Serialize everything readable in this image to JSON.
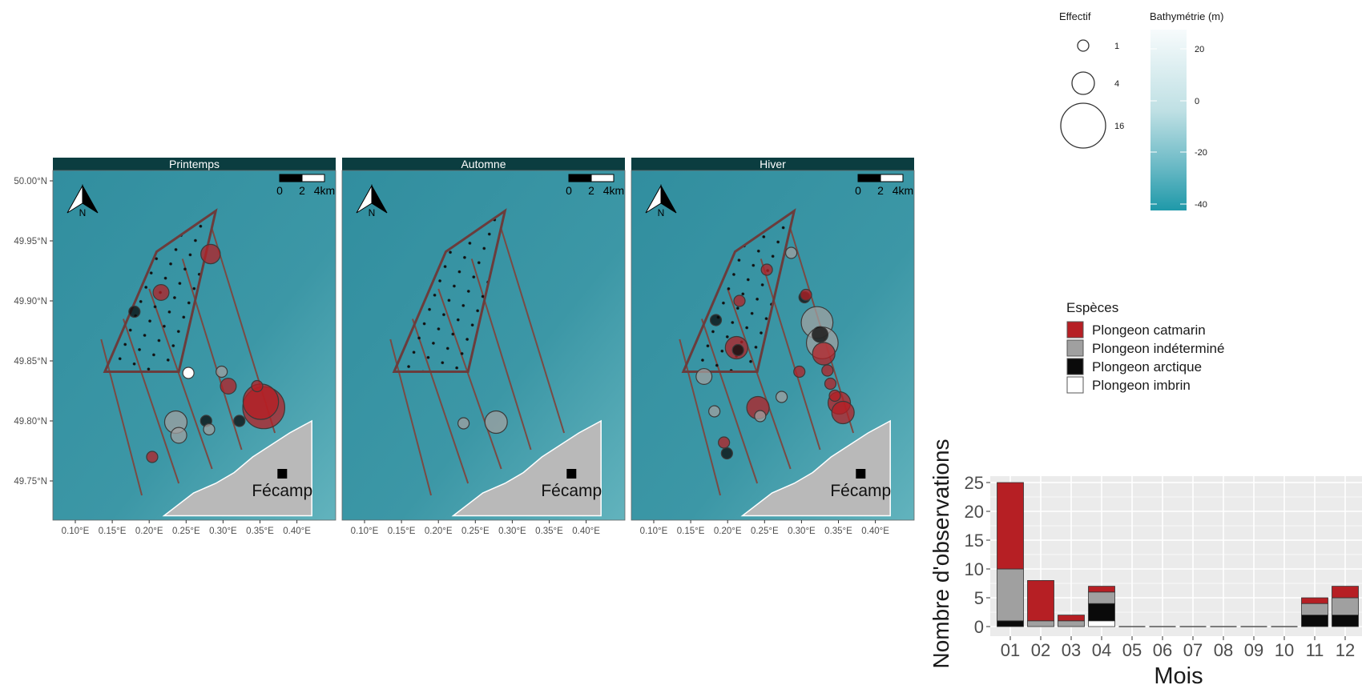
{
  "colors": {
    "sea": "#3b95a5",
    "land": "#b9b9b9",
    "strip": "#0b3d40",
    "catmarin": "#b61f24",
    "indetermine": "#a0a0a0",
    "arctique": "#0a0a0a",
    "imbrin": "#ffffff",
    "zone_outline": "#6b3c3c",
    "panel_bg": "#ebebeb",
    "grid": "#ffffff"
  },
  "map": {
    "lat_ticks": [
      "50.00°N",
      "49.95°N",
      "49.90°N",
      "49.85°N",
      "49.80°N",
      "49.75°N"
    ],
    "lon_ticks": [
      "0.10°E",
      "0.15°E",
      "0.20°E",
      "0.25°E",
      "0.30°E",
      "0.35°E",
      "0.40°E"
    ],
    "town": "Fécamp",
    "north_letter": "N",
    "scalebar_labels": [
      "0",
      "2",
      "4km"
    ],
    "panels": [
      {
        "title": "Printemps",
        "points": [
          {
            "lon": 0.18,
            "lat": 49.891,
            "n": 1,
            "sp": "arctique"
          },
          {
            "lon": 0.216,
            "lat": 49.907,
            "n": 2,
            "sp": "catmarin"
          },
          {
            "lon": 0.283,
            "lat": 49.939,
            "n": 3,
            "sp": "catmarin"
          },
          {
            "lon": 0.253,
            "lat": 49.84,
            "n": 1,
            "sp": "imbrin"
          },
          {
            "lon": 0.298,
            "lat": 49.841,
            "n": 1,
            "sp": "indetermine"
          },
          {
            "lon": 0.307,
            "lat": 49.829,
            "n": 2,
            "sp": "catmarin"
          },
          {
            "lon": 0.346,
            "lat": 49.829,
            "n": 1,
            "sp": "catmarin"
          },
          {
            "lon": 0.355,
            "lat": 49.811,
            "n": 14,
            "sp": "catmarin"
          },
          {
            "lon": 0.351,
            "lat": 49.816,
            "n": 10,
            "sp": "catmarin"
          },
          {
            "lon": 0.236,
            "lat": 49.799,
            "n": 4,
            "sp": "indetermine"
          },
          {
            "lon": 0.24,
            "lat": 49.788,
            "n": 2,
            "sp": "indetermine"
          },
          {
            "lon": 0.277,
            "lat": 49.8,
            "n": 1,
            "sp": "arctique"
          },
          {
            "lon": 0.281,
            "lat": 49.793,
            "n": 1,
            "sp": "indetermine"
          },
          {
            "lon": 0.322,
            "lat": 49.8,
            "n": 1,
            "sp": "arctique"
          },
          {
            "lon": 0.204,
            "lat": 49.77,
            "n": 1,
            "sp": "catmarin"
          }
        ]
      },
      {
        "title": "Automne",
        "points": [
          {
            "lon": 0.234,
            "lat": 49.798,
            "n": 1,
            "sp": "indetermine"
          },
          {
            "lon": 0.278,
            "lat": 49.799,
            "n": 4,
            "sp": "indetermine"
          }
        ]
      },
      {
        "title": "Hiver",
        "points": [
          {
            "lon": 0.253,
            "lat": 49.926,
            "n": 1,
            "sp": "catmarin"
          },
          {
            "lon": 0.286,
            "lat": 49.94,
            "n": 1,
            "sp": "indetermine"
          },
          {
            "lon": 0.216,
            "lat": 49.9,
            "n": 1,
            "sp": "catmarin"
          },
          {
            "lon": 0.304,
            "lat": 49.903,
            "n": 1,
            "sp": "arctique"
          },
          {
            "lon": 0.306,
            "lat": 49.905,
            "n": 1,
            "sp": "catmarin"
          },
          {
            "lon": 0.184,
            "lat": 49.884,
            "n": 1,
            "sp": "arctique"
          },
          {
            "lon": 0.321,
            "lat": 49.882,
            "n": 8,
            "sp": "indetermine"
          },
          {
            "lon": 0.325,
            "lat": 49.872,
            "n": 2,
            "sp": "arctique"
          },
          {
            "lon": 0.33,
            "lat": 49.856,
            "n": 4,
            "sp": "catmarin"
          },
          {
            "lon": 0.328,
            "lat": 49.865,
            "n": 8,
            "sp": "indetermine"
          },
          {
            "lon": 0.212,
            "lat": 49.861,
            "n": 4,
            "sp": "catmarin"
          },
          {
            "lon": 0.214,
            "lat": 49.859,
            "n": 1,
            "sp": "arctique"
          },
          {
            "lon": 0.335,
            "lat": 49.842,
            "n": 1,
            "sp": "catmarin"
          },
          {
            "lon": 0.168,
            "lat": 49.837,
            "n": 2,
            "sp": "indetermine"
          },
          {
            "lon": 0.297,
            "lat": 49.841,
            "n": 1,
            "sp": "catmarin"
          },
          {
            "lon": 0.339,
            "lat": 49.831,
            "n": 1,
            "sp": "catmarin"
          },
          {
            "lon": 0.345,
            "lat": 49.821,
            "n": 1,
            "sp": "catmarin"
          },
          {
            "lon": 0.351,
            "lat": 49.815,
            "n": 4,
            "sp": "catmarin"
          },
          {
            "lon": 0.356,
            "lat": 49.807,
            "n": 4,
            "sp": "catmarin"
          },
          {
            "lon": 0.241,
            "lat": 49.811,
            "n": 4,
            "sp": "catmarin"
          },
          {
            "lon": 0.244,
            "lat": 49.804,
            "n": 1,
            "sp": "indetermine"
          },
          {
            "lon": 0.273,
            "lat": 49.82,
            "n": 1,
            "sp": "indetermine"
          },
          {
            "lon": 0.182,
            "lat": 49.808,
            "n": 1,
            "sp": "indetermine"
          },
          {
            "lon": 0.195,
            "lat": 49.782,
            "n": 1,
            "sp": "catmarin"
          },
          {
            "lon": 0.199,
            "lat": 49.773,
            "n": 1,
            "sp": "arctique"
          }
        ]
      }
    ]
  },
  "legend_effectif": {
    "title": "Effectif",
    "entries": [
      {
        "label": "1",
        "n": 1
      },
      {
        "label": "4",
        "n": 4
      },
      {
        "label": "16",
        "n": 16
      }
    ]
  },
  "legend_bathy": {
    "title": "Bathymétrie (m)",
    "ticks": [
      "20",
      "0",
      "-20",
      "-40"
    ]
  },
  "legend_especes": {
    "title": "Espèces",
    "items": [
      {
        "key": "catmarin",
        "label": "Plongeon catmarin"
      },
      {
        "key": "indetermine",
        "label": "Plongeon indéterminé"
      },
      {
        "key": "arctique",
        "label": "Plongeon arctique"
      },
      {
        "key": "imbrin",
        "label": "Plongeon imbrin"
      }
    ]
  },
  "chart_data": {
    "type": "bar",
    "stacked": true,
    "xlabel": "Mois",
    "ylabel": "Nombre d'observations",
    "ylim": [
      0,
      25
    ],
    "y_ticks": [
      "0",
      "5",
      "10",
      "15",
      "20",
      "25"
    ],
    "categories": [
      "01",
      "02",
      "03",
      "04",
      "05",
      "06",
      "07",
      "08",
      "09",
      "10",
      "11",
      "12"
    ],
    "series": [
      {
        "key": "imbrin",
        "name": "Plongeon imbrin",
        "values": [
          0,
          0,
          0,
          1,
          0,
          0,
          0,
          0,
          0,
          0,
          0,
          0
        ]
      },
      {
        "key": "arctique",
        "name": "Plongeon arctique",
        "values": [
          1,
          0,
          0,
          3,
          0,
          0,
          0,
          0,
          0,
          0,
          2,
          2
        ]
      },
      {
        "key": "indetermine",
        "name": "Plongeon indéterminé",
        "values": [
          9,
          1,
          1,
          2,
          0,
          0,
          0,
          0,
          0,
          0,
          2,
          3
        ]
      },
      {
        "key": "catmarin",
        "name": "Plongeon catmarin",
        "values": [
          15,
          7,
          1,
          1,
          0,
          0,
          0,
          0,
          0,
          0,
          1,
          2
        ]
      }
    ],
    "grid": true
  }
}
